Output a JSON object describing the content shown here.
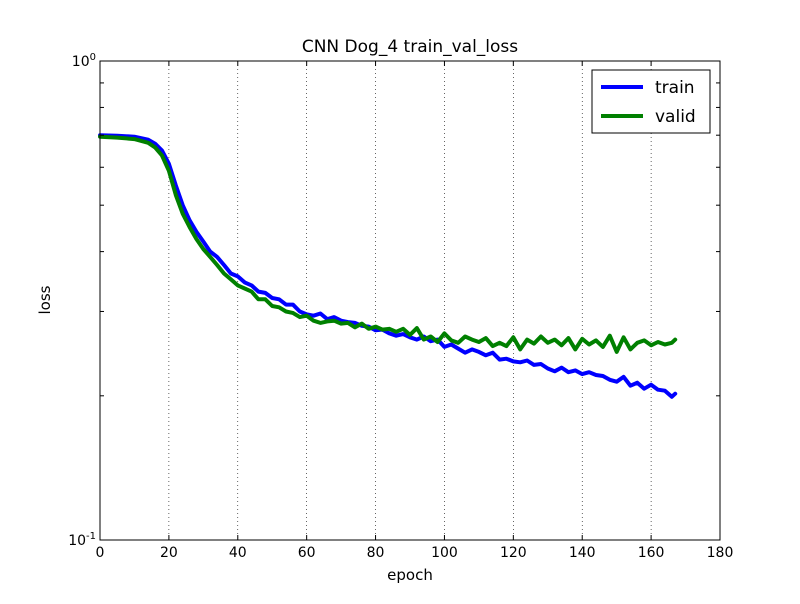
{
  "chart_data": {
    "type": "line",
    "title": "CNN Dog_4 train_val_loss",
    "xlabel": "epoch",
    "ylabel": "loss",
    "xlim": [
      0,
      180
    ],
    "ylim": [
      0.1,
      1.0
    ],
    "yscale": "log",
    "x_ticks": [
      0,
      20,
      40,
      60,
      80,
      100,
      120,
      140,
      160,
      180
    ],
    "x_tick_labels": [
      "0",
      "20",
      "40",
      "60",
      "80",
      "100",
      "120",
      "140",
      "160",
      "180"
    ],
    "y_tick_labels": [
      {
        "base": "10",
        "exp": "0"
      },
      {
        "base": "10",
        "exp": "-1"
      }
    ],
    "grid": "vertical dotted",
    "legend_position": "top-right",
    "series": [
      {
        "name": "train",
        "color": "#0000ff",
        "x": [
          0,
          5,
          10,
          14,
          16,
          18,
          20,
          22,
          24,
          26,
          28,
          30,
          32,
          34,
          36,
          38,
          40,
          42,
          44,
          46,
          48,
          50,
          52,
          54,
          56,
          58,
          60,
          62,
          64,
          66,
          68,
          70,
          72,
          74,
          76,
          78,
          80,
          82,
          84,
          86,
          88,
          90,
          92,
          94,
          96,
          98,
          100,
          102,
          104,
          106,
          108,
          110,
          112,
          114,
          116,
          118,
          120,
          122,
          124,
          126,
          128,
          130,
          132,
          134,
          136,
          138,
          140,
          142,
          144,
          146,
          148,
          150,
          152,
          154,
          156,
          158,
          160,
          162,
          164,
          166,
          167
        ],
        "values": [
          0.7,
          0.698,
          0.695,
          0.685,
          0.672,
          0.65,
          0.61,
          0.55,
          0.5,
          0.465,
          0.44,
          0.42,
          0.4,
          0.39,
          0.375,
          0.36,
          0.355,
          0.345,
          0.34,
          0.33,
          0.328,
          0.32,
          0.318,
          0.31,
          0.31,
          0.3,
          0.296,
          0.294,
          0.297,
          0.289,
          0.292,
          0.287,
          0.285,
          0.284,
          0.28,
          0.279,
          0.274,
          0.275,
          0.27,
          0.267,
          0.269,
          0.265,
          0.262,
          0.266,
          0.26,
          0.262,
          0.253,
          0.256,
          0.251,
          0.246,
          0.25,
          0.247,
          0.243,
          0.246,
          0.238,
          0.239,
          0.236,
          0.235,
          0.237,
          0.232,
          0.233,
          0.228,
          0.225,
          0.229,
          0.224,
          0.226,
          0.222,
          0.224,
          0.221,
          0.22,
          0.216,
          0.214,
          0.219,
          0.21,
          0.213,
          0.207,
          0.211,
          0.206,
          0.205,
          0.199,
          0.202
        ]
      },
      {
        "name": "valid",
        "color": "#008000",
        "x": [
          0,
          5,
          10,
          14,
          16,
          18,
          20,
          22,
          24,
          26,
          28,
          30,
          32,
          34,
          36,
          38,
          40,
          42,
          44,
          46,
          48,
          50,
          52,
          54,
          56,
          58,
          60,
          62,
          64,
          66,
          68,
          70,
          72,
          74,
          76,
          78,
          80,
          82,
          84,
          86,
          88,
          90,
          92,
          94,
          96,
          98,
          100,
          102,
          104,
          106,
          108,
          110,
          112,
          114,
          116,
          118,
          120,
          122,
          124,
          126,
          128,
          130,
          132,
          134,
          136,
          138,
          140,
          142,
          144,
          146,
          148,
          150,
          152,
          154,
          156,
          158,
          160,
          162,
          164,
          166,
          167
        ],
        "values": [
          0.695,
          0.692,
          0.687,
          0.675,
          0.66,
          0.635,
          0.59,
          0.525,
          0.48,
          0.45,
          0.425,
          0.405,
          0.39,
          0.375,
          0.36,
          0.35,
          0.34,
          0.335,
          0.33,
          0.318,
          0.318,
          0.308,
          0.306,
          0.3,
          0.298,
          0.292,
          0.294,
          0.287,
          0.284,
          0.286,
          0.287,
          0.283,
          0.284,
          0.278,
          0.283,
          0.276,
          0.279,
          0.275,
          0.276,
          0.272,
          0.276,
          0.268,
          0.277,
          0.262,
          0.266,
          0.259,
          0.27,
          0.261,
          0.258,
          0.266,
          0.262,
          0.259,
          0.264,
          0.254,
          0.258,
          0.254,
          0.265,
          0.25,
          0.262,
          0.257,
          0.266,
          0.258,
          0.262,
          0.255,
          0.264,
          0.25,
          0.263,
          0.256,
          0.261,
          0.253,
          0.267,
          0.247,
          0.265,
          0.25,
          0.258,
          0.261,
          0.255,
          0.259,
          0.256,
          0.258,
          0.262
        ]
      }
    ]
  }
}
